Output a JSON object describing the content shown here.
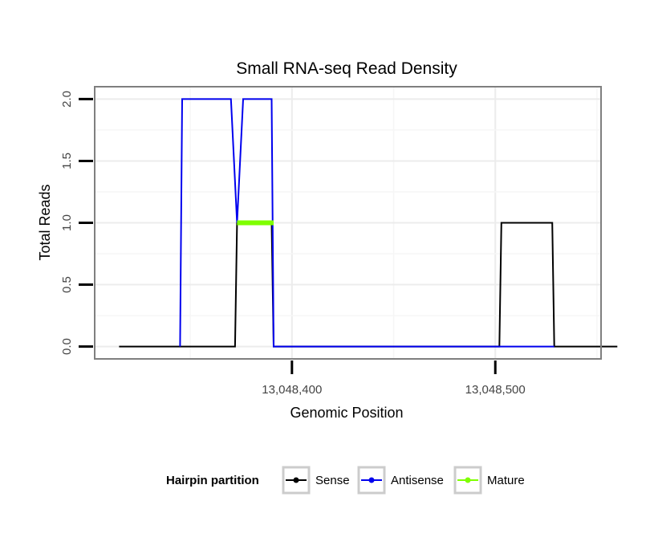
{
  "chart_data": {
    "type": "line",
    "title": "Small RNA-seq Read Density",
    "xlabel": "Genomic Position",
    "ylabel": "Total Reads",
    "xlim": [
      13048303,
      13048552
    ],
    "ylim": [
      -0.1,
      2.1
    ],
    "x_ticks": [
      13048400,
      13048500
    ],
    "x_tick_labels": [
      "13,048,400",
      "13,048,500"
    ],
    "y_ticks": [
      0.0,
      0.5,
      1.0,
      1.5,
      2.0
    ],
    "y_tick_labels": [
      "0.0",
      "0.5",
      "1.0",
      "1.5",
      "2.0"
    ],
    "grid": true,
    "series": [
      {
        "name": "Sense",
        "color": "#000000",
        "points": [
          [
            13048315,
            0
          ],
          [
            13048372,
            0
          ],
          [
            13048373,
            1
          ],
          [
            13048390,
            1
          ],
          [
            13048391,
            0
          ],
          [
            13048502,
            0
          ],
          [
            13048503,
            1
          ],
          [
            13048528,
            1
          ],
          [
            13048529,
            0
          ],
          [
            13048560,
            0
          ]
        ]
      },
      {
        "name": "Antisense",
        "color": "#0000ee",
        "points": [
          [
            13048345,
            0
          ],
          [
            13048346,
            2
          ],
          [
            13048370,
            2
          ],
          [
            13048373,
            1
          ],
          [
            13048376,
            2
          ],
          [
            13048390,
            2
          ],
          [
            13048391,
            0
          ],
          [
            13048503,
            0
          ],
          [
            13048528,
            0
          ],
          [
            13048529,
            0
          ]
        ]
      },
      {
        "name": "Mature",
        "color": "#7fff00",
        "points": [
          [
            13048373,
            1
          ],
          [
            13048391,
            1
          ]
        ]
      }
    ],
    "legend": {
      "title": "Hairpin partition",
      "position": "bottom",
      "entries": [
        "Sense",
        "Antisense",
        "Mature"
      ]
    }
  }
}
